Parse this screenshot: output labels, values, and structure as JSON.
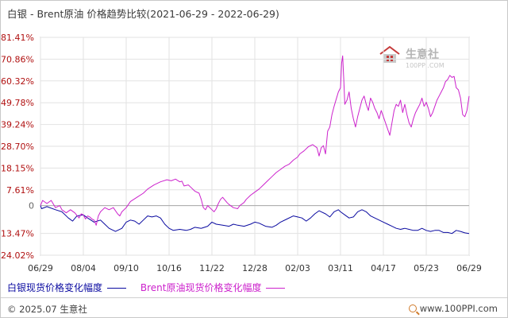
{
  "title": "白银 - Brent原油 价格趋势比较(2021-06-29 - 2022-06-29)",
  "watermark": {
    "brand": "生意社",
    "site": "100PPI.COM"
  },
  "legend": [
    {
      "label": "白银现货价格变化幅度",
      "color": "#0a0aa0"
    },
    {
      "label": "Brent原油现货价格变化幅度",
      "color": "#cc22cc"
    }
  ],
  "footer": {
    "copyright": "© 2025.07 生意社",
    "site": "www.100PPI.com"
  },
  "chart_data": {
    "type": "line",
    "ylim": [
      -24.02,
      81.41
    ],
    "y_ticks": [
      "81.41%",
      "70.86%",
      "60.32%",
      "49.78%",
      "39.24%",
      "28.70%",
      "18.15%",
      "7.61%",
      "0",
      "-13.47%",
      "-24.02%"
    ],
    "y_tick_values": [
      81.41,
      70.86,
      60.32,
      49.78,
      39.24,
      28.7,
      18.15,
      7.61,
      0,
      -13.47,
      -24.02
    ],
    "x_ticks": [
      "06/29",
      "08/04",
      "09/10",
      "10/16",
      "11/22",
      "12/28",
      "02/03",
      "03/11",
      "04/17",
      "05/23",
      "06/29"
    ],
    "series": [
      {
        "name": "白银现货价格变化幅度",
        "color": "#0a0aa0",
        "points": [
          [
            0,
            0
          ],
          [
            0.05,
            -1.5
          ],
          [
            0.3,
            -0.5
          ],
          [
            0.7,
            -2
          ],
          [
            1.0,
            -3
          ],
          [
            1.3,
            -6
          ],
          [
            1.5,
            -7.5
          ],
          [
            1.7,
            -5
          ],
          [
            2.0,
            -4.5
          ],
          [
            2.2,
            -6
          ],
          [
            2.5,
            -8
          ],
          [
            2.8,
            -7
          ],
          [
            3.0,
            -9
          ],
          [
            3.2,
            -11
          ],
          [
            3.5,
            -12.5
          ],
          [
            3.8,
            -11
          ],
          [
            4.0,
            -8
          ],
          [
            4.2,
            -7
          ],
          [
            4.4,
            -7.5
          ],
          [
            4.6,
            -9
          ],
          [
            4.8,
            -7
          ],
          [
            5.0,
            -5
          ],
          [
            5.2,
            -5.5
          ],
          [
            5.4,
            -5
          ],
          [
            5.6,
            -6
          ],
          [
            5.8,
            -9
          ],
          [
            6.0,
            -11
          ],
          [
            6.2,
            -12
          ],
          [
            6.5,
            -11.5
          ],
          [
            6.8,
            -12
          ],
          [
            7.0,
            -11.5
          ],
          [
            7.2,
            -10.5
          ],
          [
            7.5,
            -11
          ],
          [
            7.8,
            -10
          ],
          [
            8.0,
            -8
          ],
          [
            8.2,
            -9
          ],
          [
            8.5,
            -9.5
          ],
          [
            8.8,
            -10
          ],
          [
            9.0,
            -9
          ],
          [
            9.2,
            -9.5
          ],
          [
            9.5,
            -10
          ],
          [
            9.8,
            -9
          ],
          [
            10.0,
            -8
          ],
          [
            10.2,
            -8.5
          ],
          [
            10.5,
            -10
          ],
          [
            10.8,
            -10.5
          ],
          [
            11.0,
            -9.5
          ],
          [
            11.2,
            -8
          ],
          [
            11.5,
            -6.5
          ],
          [
            11.8,
            -5
          ],
          [
            12.0,
            -5.5
          ],
          [
            12.2,
            -6
          ],
          [
            12.4,
            -7.5
          ],
          [
            12.6,
            -6
          ],
          [
            12.8,
            -4
          ],
          [
            13.0,
            -2.5
          ],
          [
            13.1,
            -3
          ],
          [
            13.3,
            -4
          ],
          [
            13.5,
            -5.5
          ],
          [
            13.7,
            -3
          ],
          [
            13.9,
            -2
          ],
          [
            14.0,
            -3
          ],
          [
            14.2,
            -4.5
          ],
          [
            14.4,
            -6
          ],
          [
            14.6,
            -5.5
          ],
          [
            14.8,
            -3
          ],
          [
            15.0,
            -2
          ],
          [
            15.2,
            -3
          ],
          [
            15.4,
            -5
          ],
          [
            15.6,
            -6
          ],
          [
            15.8,
            -7
          ],
          [
            16.0,
            -8
          ],
          [
            16.2,
            -9
          ],
          [
            16.4,
            -10
          ],
          [
            16.6,
            -11
          ],
          [
            16.8,
            -11.5
          ],
          [
            17.0,
            -11
          ],
          [
            17.2,
            -11.5
          ],
          [
            17.4,
            -12
          ],
          [
            17.6,
            -12
          ],
          [
            17.8,
            -11
          ],
          [
            18.0,
            -12
          ],
          [
            18.2,
            -12.5
          ],
          [
            18.4,
            -12
          ],
          [
            18.6,
            -12
          ],
          [
            18.8,
            -13
          ],
          [
            19.0,
            -13
          ],
          [
            19.2,
            -13.5
          ],
          [
            19.4,
            -12
          ],
          [
            19.6,
            -12.5
          ],
          [
            19.8,
            -13.2
          ],
          [
            20.0,
            -13.5
          ]
        ]
      },
      {
        "name": "Brent原油现货价格变化幅度",
        "color": "#cc22cc",
        "points": [
          [
            0,
            0
          ],
          [
            0.1,
            2.5
          ],
          [
            0.3,
            1
          ],
          [
            0.5,
            2.5
          ],
          [
            0.7,
            -1
          ],
          [
            0.9,
            0
          ],
          [
            1.0,
            -2
          ],
          [
            1.2,
            -3.5
          ],
          [
            1.4,
            -2
          ],
          [
            1.6,
            -3.5
          ],
          [
            1.8,
            -6
          ],
          [
            1.9,
            -4
          ],
          [
            2.0,
            -4.5
          ],
          [
            2.1,
            -6.5
          ],
          [
            2.2,
            -5
          ],
          [
            2.3,
            -5.5
          ],
          [
            2.4,
            -6.5
          ],
          [
            2.5,
            -7
          ],
          [
            2.6,
            -9.5
          ],
          [
            2.7,
            -5
          ],
          [
            2.8,
            -3
          ],
          [
            3.0,
            -1
          ],
          [
            3.2,
            -2
          ],
          [
            3.4,
            -1
          ],
          [
            3.6,
            -4
          ],
          [
            3.7,
            -5
          ],
          [
            3.8,
            -3
          ],
          [
            4.0,
            -1
          ],
          [
            4.2,
            2
          ],
          [
            4.5,
            4
          ],
          [
            4.8,
            6
          ],
          [
            5.0,
            8
          ],
          [
            5.3,
            10
          ],
          [
            5.6,
            11.5
          ],
          [
            5.9,
            12.5
          ],
          [
            6.1,
            12
          ],
          [
            6.3,
            12.8
          ],
          [
            6.5,
            11.5
          ],
          [
            6.6,
            11.8
          ],
          [
            6.7,
            9.5
          ],
          [
            6.9,
            10
          ],
          [
            7.0,
            9
          ],
          [
            7.2,
            7
          ],
          [
            7.4,
            6
          ],
          [
            7.5,
            3
          ],
          [
            7.6,
            -1
          ],
          [
            7.7,
            -2
          ],
          [
            7.8,
            0
          ],
          [
            8.0,
            -2
          ],
          [
            8.1,
            -3
          ],
          [
            8.2,
            -1.5
          ],
          [
            8.3,
            1
          ],
          [
            8.4,
            3
          ],
          [
            8.5,
            4
          ],
          [
            8.7,
            1.5
          ],
          [
            8.8,
            0.5
          ],
          [
            9.0,
            -1
          ],
          [
            9.2,
            -1.5
          ],
          [
            9.3,
            0
          ],
          [
            9.5,
            1.5
          ],
          [
            9.6,
            3
          ],
          [
            9.8,
            5
          ],
          [
            10.0,
            6.5
          ],
          [
            10.2,
            8
          ],
          [
            10.4,
            10
          ],
          [
            10.6,
            12
          ],
          [
            10.8,
            14
          ],
          [
            11.0,
            16
          ],
          [
            11.2,
            17.5
          ],
          [
            11.4,
            19
          ],
          [
            11.6,
            20
          ],
          [
            11.8,
            22
          ],
          [
            12.0,
            23.5
          ],
          [
            12.1,
            25
          ],
          [
            12.3,
            26.5
          ],
          [
            12.5,
            28.5
          ],
          [
            12.7,
            29.5
          ],
          [
            12.9,
            28
          ],
          [
            13.0,
            24
          ],
          [
            13.1,
            28
          ],
          [
            13.2,
            29
          ],
          [
            13.3,
            25
          ],
          [
            13.4,
            36
          ],
          [
            13.5,
            38
          ],
          [
            13.6,
            44
          ],
          [
            13.7,
            48
          ],
          [
            13.8,
            51.5
          ],
          [
            13.9,
            55
          ],
          [
            14.0,
            57
          ],
          [
            14.05,
            69
          ],
          [
            14.1,
            72.5
          ],
          [
            14.15,
            61
          ],
          [
            14.2,
            49
          ],
          [
            14.3,
            51
          ],
          [
            14.4,
            55
          ],
          [
            14.5,
            47
          ],
          [
            14.6,
            42
          ],
          [
            14.7,
            38
          ],
          [
            14.8,
            43
          ],
          [
            14.9,
            47
          ],
          [
            15.0,
            51
          ],
          [
            15.1,
            53
          ],
          [
            15.2,
            49
          ],
          [
            15.3,
            46
          ],
          [
            15.4,
            52
          ],
          [
            15.5,
            50
          ],
          [
            15.6,
            47
          ],
          [
            15.7,
            45
          ],
          [
            15.8,
            42
          ],
          [
            15.9,
            46
          ],
          [
            16.0,
            43
          ],
          [
            16.2,
            37
          ],
          [
            16.3,
            34
          ],
          [
            16.4,
            40
          ],
          [
            16.5,
            46
          ],
          [
            16.6,
            49
          ],
          [
            16.7,
            48
          ],
          [
            16.8,
            51
          ],
          [
            16.9,
            45
          ],
          [
            17.0,
            49
          ],
          [
            17.1,
            44
          ],
          [
            17.2,
            40
          ],
          [
            17.3,
            38
          ],
          [
            17.4,
            42
          ],
          [
            17.5,
            45
          ],
          [
            17.6,
            47
          ],
          [
            17.7,
            49
          ],
          [
            17.8,
            52
          ],
          [
            17.9,
            48
          ],
          [
            18.0,
            50
          ],
          [
            18.1,
            47
          ],
          [
            18.2,
            43
          ],
          [
            18.3,
            45
          ],
          [
            18.4,
            48
          ],
          [
            18.5,
            51
          ],
          [
            18.6,
            53
          ],
          [
            18.7,
            55
          ],
          [
            18.8,
            57
          ],
          [
            18.9,
            60
          ],
          [
            19.0,
            61
          ],
          [
            19.1,
            63
          ],
          [
            19.2,
            62
          ],
          [
            19.3,
            62.5
          ],
          [
            19.4,
            57
          ],
          [
            19.5,
            56
          ],
          [
            19.6,
            52
          ],
          [
            19.7,
            44
          ],
          [
            19.8,
            43
          ],
          [
            19.9,
            46
          ],
          [
            20.0,
            53
          ]
        ]
      }
    ]
  }
}
